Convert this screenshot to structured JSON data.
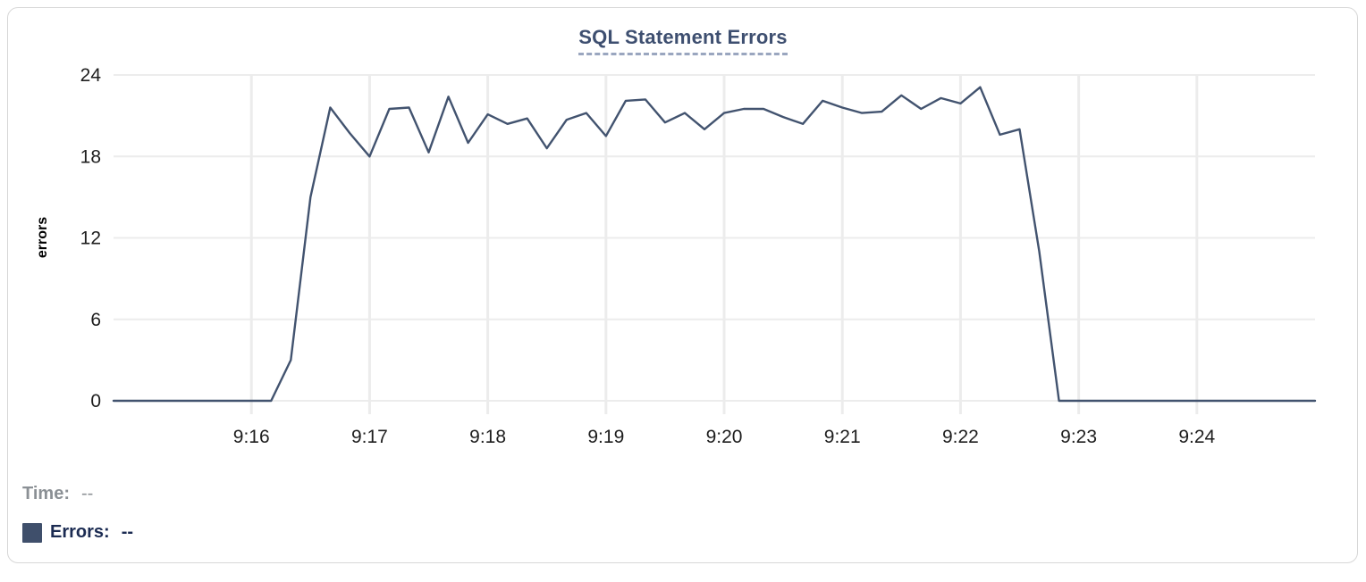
{
  "chart_data": {
    "type": "line",
    "title": "SQL Statement Errors",
    "xlabel": "",
    "ylabel": "errors",
    "ylim": [
      0,
      24
    ],
    "y_ticks": [
      0,
      6,
      12,
      18,
      24
    ],
    "x_tick_labels": [
      "9:16",
      "9:17",
      "9:18",
      "9:19",
      "9:20",
      "9:21",
      "9:22",
      "9:23",
      "9:24"
    ],
    "x_tick_offsets_seconds": [
      70,
      130,
      190,
      250,
      310,
      370,
      430,
      490,
      550
    ],
    "x_start_time": "9:14:50",
    "x_end_time": "9:25:00",
    "x_total_seconds": 610,
    "x_interval_seconds": 10,
    "grid": true,
    "legend_position": "bottom-left",
    "grid_color": "#ececec",
    "tick_label_color": "#1e1e1e",
    "series": [
      {
        "name": "Errors",
        "color": "#42536f",
        "values": [
          0,
          0,
          0,
          0,
          0,
          0,
          0,
          0,
          0,
          3,
          15,
          21.6,
          19.7,
          18,
          21.5,
          21.6,
          18.3,
          22.4,
          19,
          21.1,
          20.4,
          20.8,
          18.6,
          20.7,
          21.2,
          19.5,
          22.1,
          22.2,
          20.5,
          21.2,
          20,
          21.2,
          21.5,
          21.5,
          20.9,
          20.4,
          22.1,
          21.6,
          21.2,
          21.3,
          22.5,
          21.5,
          22.3,
          21.9,
          23.1,
          19.6,
          20,
          11,
          0,
          0,
          0,
          0,
          0,
          0,
          0,
          0,
          0,
          0,
          0,
          0,
          0,
          0
        ]
      }
    ]
  },
  "tooltip_readout": {
    "time_label": "Time:",
    "time_value": "--",
    "errors_label": "Errors:",
    "errors_value": "--",
    "swatch_color": "#3f4f6b"
  }
}
